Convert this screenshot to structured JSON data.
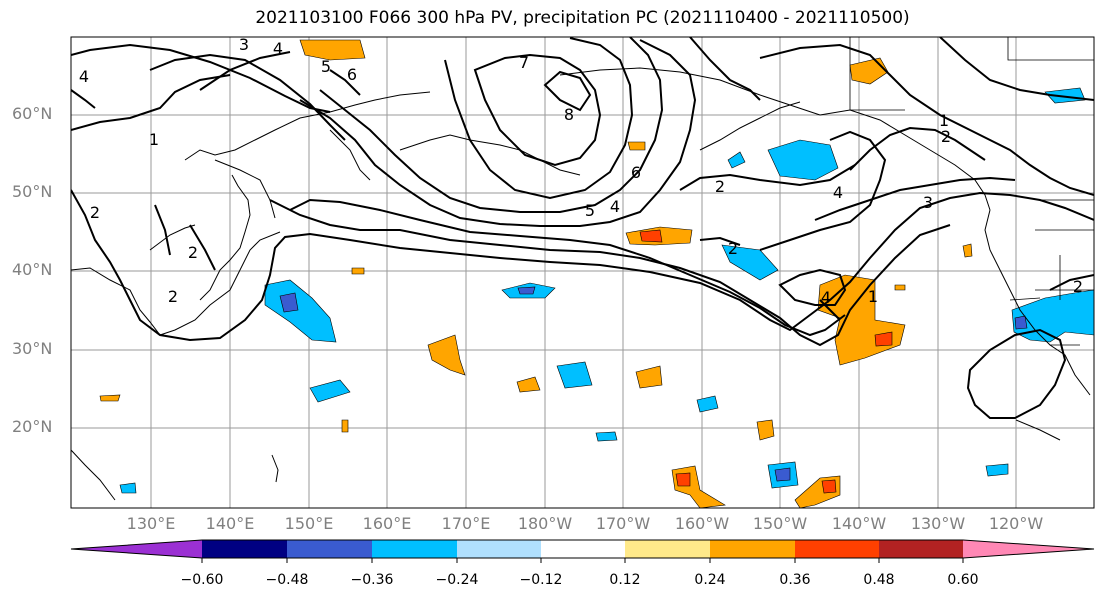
{
  "title": "2021103100 F066 300 hPa PV, precipitation PC (2021110400 - 2021110500)",
  "lat_labels": [
    "60°N",
    "50°N",
    "40°N",
    "30°N",
    "20°N"
  ],
  "lon_labels": [
    "130°E",
    "140°E",
    "150°E",
    "160°E",
    "170°E",
    "180°W",
    "170°W",
    "160°W",
    "150°W",
    "140°W",
    "130°W",
    "120°W"
  ],
  "contour_labels": [
    "4",
    "3",
    "4",
    "5",
    "6",
    "7",
    "8",
    "1",
    "2",
    "2",
    "2",
    "6",
    "5",
    "4",
    "2",
    "2",
    "4",
    "1",
    "2",
    "3",
    "4",
    "1",
    "2"
  ],
  "colorbar": {
    "colors": [
      "#9b30d3",
      "#000082",
      "#3a5bd0",
      "#00bfff",
      "#b0e0fe",
      "#ffffff",
      "#ffe98a",
      "#ffa500",
      "#ff4000",
      "#b22222",
      "#ff88b5"
    ],
    "tick_labels": [
      "−0.60",
      "−0.48",
      "−0.36",
      "−0.24",
      "−0.12",
      "0.12",
      "0.24",
      "0.36",
      "0.48",
      "0.60"
    ]
  }
}
